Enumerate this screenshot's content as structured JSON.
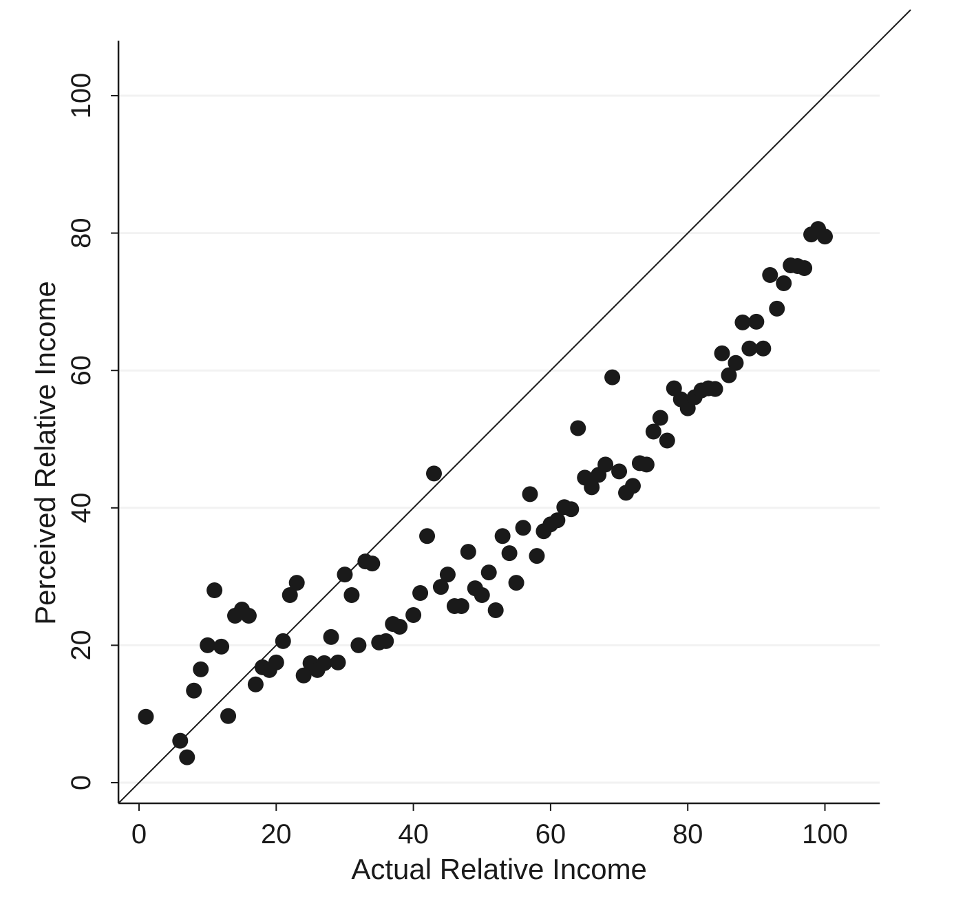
{
  "chart_data": {
    "type": "scatter",
    "title": "",
    "xlabel": "Actual Relative Income",
    "ylabel": "Perceived Relative Income",
    "xlim": [
      -3,
      108
    ],
    "ylim": [
      -3,
      108
    ],
    "x_ticks": [
      0,
      20,
      40,
      60,
      80,
      100
    ],
    "y_ticks": [
      0,
      20,
      40,
      60,
      80,
      100
    ],
    "grid": "horizontal",
    "reference_line": "45-degree (y = x)",
    "marker_color": "#1a1a1a",
    "grid_color": "#f2f2f2",
    "points": [
      [
        1,
        9.6
      ],
      [
        6,
        6.1
      ],
      [
        7,
        3.7
      ],
      [
        8,
        13.4
      ],
      [
        9,
        16.5
      ],
      [
        10,
        20
      ],
      [
        11,
        28
      ],
      [
        12,
        19.8
      ],
      [
        13,
        9.7
      ],
      [
        14,
        24.3
      ],
      [
        15,
        25.2
      ],
      [
        16,
        24.3
      ],
      [
        17,
        14.3
      ],
      [
        18,
        16.8
      ],
      [
        19,
        16.4
      ],
      [
        20,
        17.5
      ],
      [
        21,
        20.6
      ],
      [
        22,
        27.3
      ],
      [
        23,
        29.1
      ],
      [
        24,
        15.6
      ],
      [
        25,
        17.4
      ],
      [
        26,
        16.4
      ],
      [
        27,
        17.4
      ],
      [
        28,
        21.2
      ],
      [
        29,
        17.5
      ],
      [
        30,
        30.3
      ],
      [
        31,
        27.3
      ],
      [
        32,
        20
      ],
      [
        33,
        32.2
      ],
      [
        34,
        31.9
      ],
      [
        35,
        20.4
      ],
      [
        36,
        20.6
      ],
      [
        37,
        23.1
      ],
      [
        38,
        22.7
      ],
      [
        40,
        24.4
      ],
      [
        41,
        27.6
      ],
      [
        42,
        35.9
      ],
      [
        43,
        45
      ],
      [
        44,
        28.5
      ],
      [
        45,
        30.3
      ],
      [
        46,
        25.7
      ],
      [
        47,
        25.7
      ],
      [
        48,
        33.6
      ],
      [
        49,
        28.3
      ],
      [
        50,
        27.3
      ],
      [
        51,
        30.6
      ],
      [
        52,
        25.1
      ],
      [
        53,
        35.9
      ],
      [
        54,
        33.4
      ],
      [
        55,
        29.1
      ],
      [
        56,
        37.1
      ],
      [
        57,
        42
      ],
      [
        58,
        33
      ],
      [
        59,
        36.6
      ],
      [
        60,
        37.6
      ],
      [
        61,
        38.2
      ],
      [
        62,
        40.1
      ],
      [
        63,
        39.8
      ],
      [
        64,
        51.6
      ],
      [
        65,
        44.4
      ],
      [
        66,
        43
      ],
      [
        67,
        44.8
      ],
      [
        68,
        46.3
      ],
      [
        69,
        59
      ],
      [
        70,
        45.3
      ],
      [
        71,
        42.2
      ],
      [
        72,
        43.2
      ],
      [
        73,
        46.5
      ],
      [
        74,
        46.3
      ],
      [
        75,
        51.1
      ],
      [
        76,
        53.1
      ],
      [
        77,
        49.8
      ],
      [
        78,
        57.4
      ],
      [
        79,
        55.8
      ],
      [
        80,
        54.5
      ],
      [
        81,
        56.1
      ],
      [
        82,
        57.1
      ],
      [
        83,
        57.4
      ],
      [
        84,
        57.3
      ],
      [
        85,
        62.5
      ],
      [
        86,
        59.3
      ],
      [
        87,
        61.1
      ],
      [
        88,
        67
      ],
      [
        89,
        63.2
      ],
      [
        90,
        67.1
      ],
      [
        91,
        63.2
      ],
      [
        92,
        73.9
      ],
      [
        93,
        69
      ],
      [
        94,
        72.7
      ],
      [
        95,
        75.3
      ],
      [
        96,
        75.2
      ],
      [
        97,
        74.9
      ],
      [
        98,
        79.8
      ],
      [
        99,
        80.6
      ],
      [
        100,
        79.5
      ]
    ]
  }
}
